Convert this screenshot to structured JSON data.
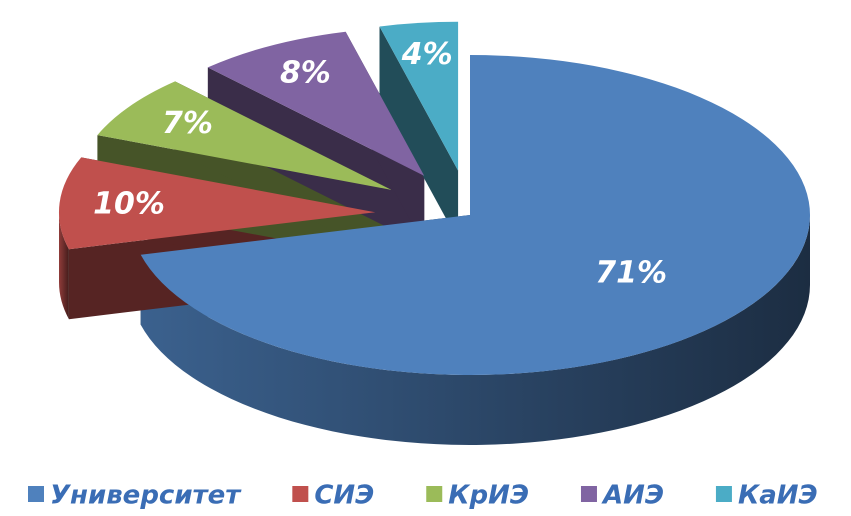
{
  "chart_data": {
    "type": "pie",
    "categories": [
      "Университет",
      "СИЭ",
      "КрИЭ",
      "АИЭ",
      "КаИЭ"
    ],
    "values": [
      71,
      10,
      7,
      8,
      4
    ],
    "value_labels": [
      "71%",
      "10%",
      "7%",
      "8%",
      "4%"
    ],
    "colors": [
      "#4f81bd",
      "#c0504d",
      "#9bbb59",
      "#8064a2",
      "#4bacc6"
    ],
    "legend": "bottom"
  }
}
